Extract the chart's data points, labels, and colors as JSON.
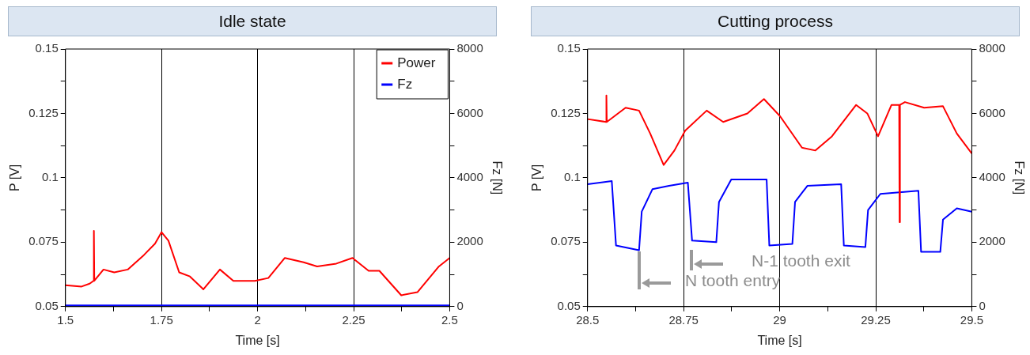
{
  "chart_data": [
    {
      "type": "line",
      "title": "Idle state",
      "xlabel": "Time [s]",
      "ylabel": "P [V]",
      "y2label": "Fz [N]",
      "xlim": [
        1.5,
        2.5
      ],
      "xticks": [
        1.5,
        {
          "value": 1.625,
          "label": null
        },
        1.75,
        {
          "value": 1.875,
          "label": null
        },
        2,
        {
          "value": 2.125,
          "label": null
        },
        2.25,
        {
          "value": 2.375,
          "label": null
        },
        2.5
      ],
      "ylim": [
        0.05,
        0.15
      ],
      "yticks": [
        0.05,
        {
          "value": 0.0625,
          "label": null
        },
        0.075,
        {
          "value": 0.0875,
          "label": null
        },
        0.1,
        {
          "value": 0.1125,
          "label": null
        },
        0.125,
        {
          "value": 0.1375,
          "label": null
        },
        0.15
      ],
      "y2lim": [
        0,
        8000
      ],
      "y2ticks": [
        0,
        {
          "value": 1000,
          "label": null
        },
        2000,
        {
          "value": 3000,
          "label": null
        },
        4000,
        {
          "value": 5000,
          "label": null
        },
        6000,
        {
          "value": 7000,
          "label": null
        },
        8000
      ],
      "grid": "x",
      "legend": "top right",
      "series": [
        {
          "name": "Power",
          "color": "#ff0000",
          "x": [
            1.5,
            1.542,
            1.563,
            1.573,
            1.574,
            1.575,
            1.599,
            1.627,
            1.662,
            1.704,
            1.733,
            1.75,
            1.768,
            1.796,
            1.824,
            1.859,
            1.902,
            1.937,
            1.993,
            2.028,
            2.071,
            2.12,
            2.155,
            2.205,
            2.247,
            2.289,
            2.317,
            2.374,
            2.416,
            2.472,
            2.5
          ],
          "values": [
            0.0583,
            0.0578,
            0.0589,
            0.06,
            0.0794,
            0.06,
            0.0644,
            0.0633,
            0.0644,
            0.07,
            0.0744,
            0.0789,
            0.0756,
            0.0633,
            0.0617,
            0.0567,
            0.0644,
            0.06,
            0.06,
            0.0611,
            0.0689,
            0.0672,
            0.0656,
            0.0667,
            0.0689,
            0.0639,
            0.0639,
            0.0544,
            0.0556,
            0.0656,
            0.0689
          ]
        },
        {
          "name": "Fz",
          "color": "#0000ff",
          "axis": "y2",
          "x": [
            1.5,
            2.5
          ],
          "values": [
            40,
            40
          ]
        }
      ]
    },
    {
      "type": "line",
      "title": "Cutting process",
      "xlabel": "Time [s]",
      "ylabel": "P [V]",
      "y2label": "Fz [N]",
      "xlim": [
        28.5,
        29.5
      ],
      "xticks": [
        28.5,
        {
          "value": 28.625,
          "label": null
        },
        28.75,
        {
          "value": 28.875,
          "label": null
        },
        29,
        {
          "value": 29.125,
          "label": null
        },
        29.25,
        {
          "value": 29.375,
          "label": null
        },
        29.5
      ],
      "ylim": [
        0.05,
        0.15
      ],
      "yticks": [
        0.05,
        {
          "value": 0.0625,
          "label": null
        },
        0.075,
        {
          "value": 0.0875,
          "label": null
        },
        0.1,
        {
          "value": 0.1125,
          "label": null
        },
        0.125,
        {
          "value": 0.1375,
          "label": null
        },
        0.15
      ],
      "y2lim": [
        0,
        8000
      ],
      "y2ticks": [
        0,
        {
          "value": 1000,
          "label": null
        },
        2000,
        {
          "value": 3000,
          "label": null
        },
        4000,
        {
          "value": 5000,
          "label": null
        },
        6000,
        {
          "value": 7000,
          "label": null
        },
        8000
      ],
      "grid": "x",
      "annotations": [
        "N-1  tooth exit",
        "N tooth entry"
      ],
      "series": [
        {
          "color": "#ff0000",
          "x": [
            28.5,
            28.548,
            28.549,
            28.55,
            28.599,
            28.634,
            28.663,
            28.698,
            28.726,
            28.754,
            28.81,
            28.853,
            28.916,
            28.959,
            29.001,
            29.058,
            29.093,
            29.136,
            29.199,
            29.228,
            29.256,
            29.291,
            29.311,
            29.312,
            29.313,
            29.326,
            29.376,
            29.425,
            29.461,
            29.5
          ],
          "values": [
            0.1228,
            0.1217,
            0.132,
            0.1217,
            0.1272,
            0.1261,
            0.1172,
            0.105,
            0.1106,
            0.1183,
            0.1261,
            0.1217,
            0.125,
            0.1306,
            0.1239,
            0.1117,
            0.1106,
            0.1161,
            0.1283,
            0.125,
            0.1161,
            0.1283,
            0.1283,
            0.0828,
            0.1283,
            0.1294,
            0.1272,
            0.1278,
            0.1172,
            0.1094
          ]
        },
        {
          "color": "#0000ff",
          "axis": "y2",
          "x": [
            28.5,
            28.563,
            28.574,
            28.634,
            28.641,
            28.669,
            28.712,
            28.761,
            28.772,
            28.835,
            28.842,
            28.874,
            28.966,
            28.973,
            29.033,
            29.04,
            29.072,
            29.16,
            29.167,
            29.223,
            29.23,
            29.262,
            29.361,
            29.368,
            29.418,
            29.425,
            29.461,
            29.5
          ],
          "values": [
            3800,
            3900,
            1900,
            1750,
            2950,
            3650,
            3750,
            3850,
            2050,
            2000,
            3250,
            3950,
            3950,
            1900,
            1950,
            3250,
            3750,
            3800,
            1900,
            1850,
            3000,
            3500,
            3600,
            1700,
            1700,
            2700,
            3050,
            2950
          ]
        }
      ]
    }
  ]
}
